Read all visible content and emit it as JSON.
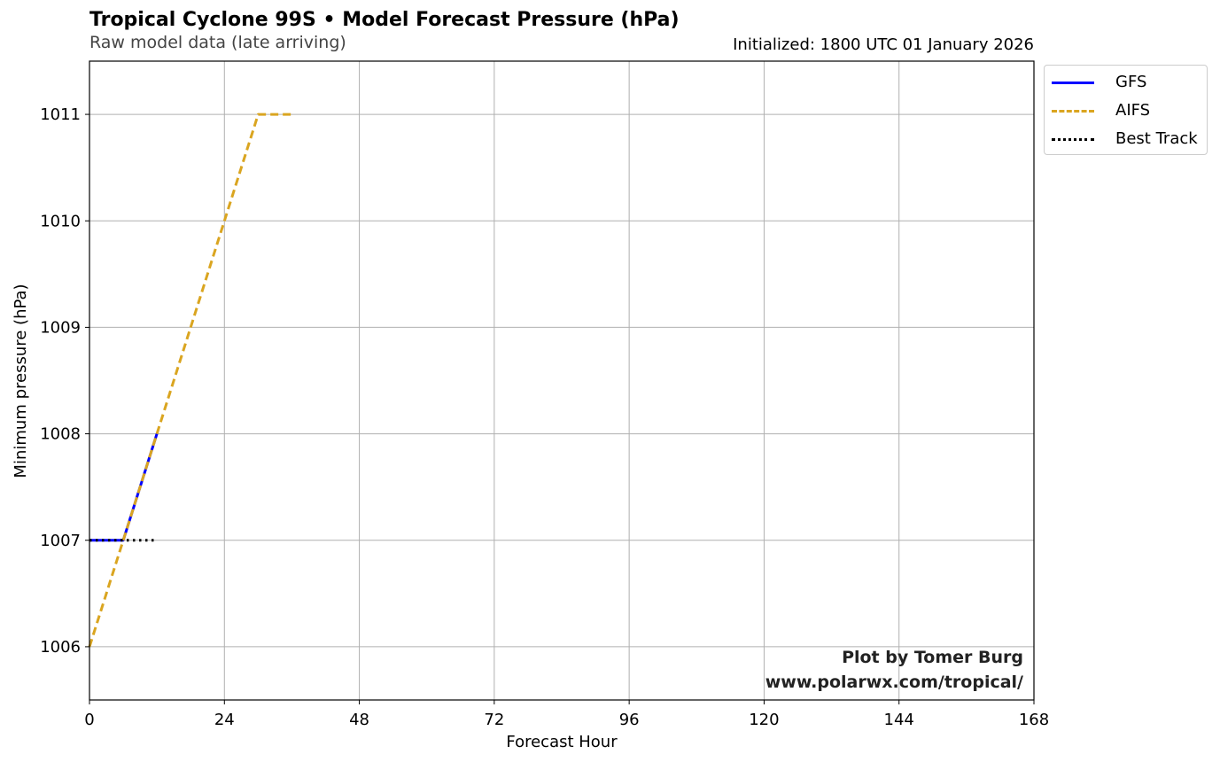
{
  "title": "Tropical Cyclone 99S • Model Forecast Pressure (hPa)",
  "subtitle": "Raw model data (late arriving)",
  "init_label": "Initialized: 1800 UTC 01 January 2026",
  "credit": {
    "line1": "Plot by Tomer Burg",
    "line2": "www.polarwx.com/tropical/"
  },
  "colors": {
    "gfs": "#0000ff",
    "aifs": "#daa520",
    "best_track": "#000000",
    "grid": "#b0b0b0"
  },
  "chart_data": {
    "type": "line",
    "xlabel": "Forecast Hour",
    "ylabel": "Minimum pressure (hPa)",
    "xlim": [
      0,
      168
    ],
    "ylim": [
      1005.5,
      1011.5
    ],
    "xticks": [
      0,
      24,
      48,
      72,
      96,
      120,
      144,
      168
    ],
    "yticks": [
      1006,
      1007,
      1008,
      1009,
      1010,
      1011
    ],
    "grid": true,
    "legend_position": "outside-top-right",
    "series": [
      {
        "name": "GFS",
        "style": "solid",
        "x": [
          0,
          6,
          12
        ],
        "y": [
          1007,
          1007,
          1008
        ]
      },
      {
        "name": "AIFS",
        "style": "dashed",
        "x": [
          0,
          6,
          12,
          18,
          24,
          30,
          36
        ],
        "y": [
          1006,
          1007,
          1008,
          1009,
          1010,
          1011,
          1011
        ]
      },
      {
        "name": "Best Track",
        "style": "dotted",
        "x": [
          0,
          6,
          12
        ],
        "y": [
          1007,
          1007,
          1007
        ]
      }
    ]
  }
}
